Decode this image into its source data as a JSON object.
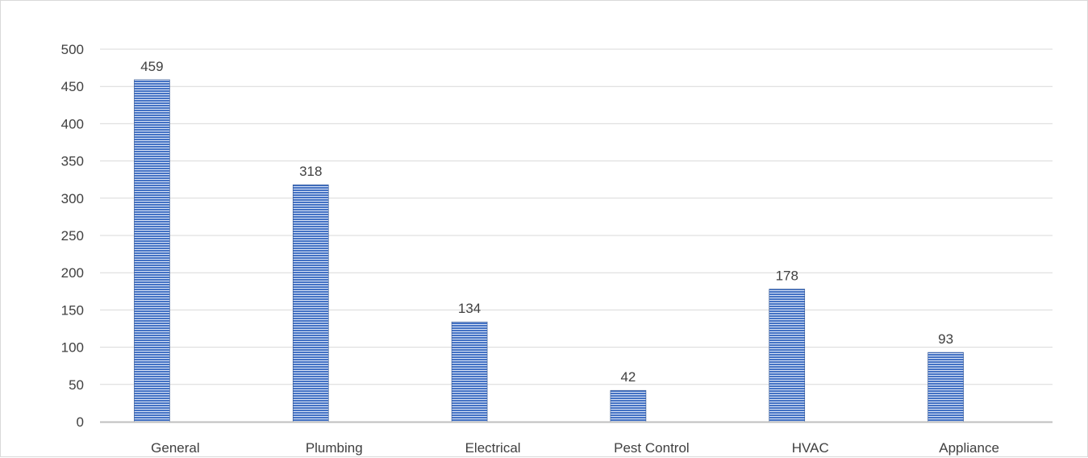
{
  "chart_data": {
    "type": "bar",
    "categories": [
      "General",
      "Plumbing",
      "Electrical",
      "Pest Control",
      "HVAC",
      "Appliance"
    ],
    "values": [
      459,
      318,
      134,
      42,
      178,
      93
    ],
    "title": "",
    "xlabel": "",
    "ylabel": "",
    "ylim": [
      0,
      500
    ],
    "yticks": [
      0,
      50,
      100,
      150,
      200,
      250,
      300,
      350,
      400,
      450,
      500
    ],
    "grid": true,
    "legend": "none",
    "data_labels": true,
    "bar_style": "horizontal-striped",
    "colors": {
      "bar_fill": "#4472c4",
      "bar_stripe": "#ffffff",
      "bar_dark": "#2f528f",
      "gridline": "#d9d9d9",
      "axis_line": "#bfbfbf",
      "text": "#404040"
    }
  }
}
